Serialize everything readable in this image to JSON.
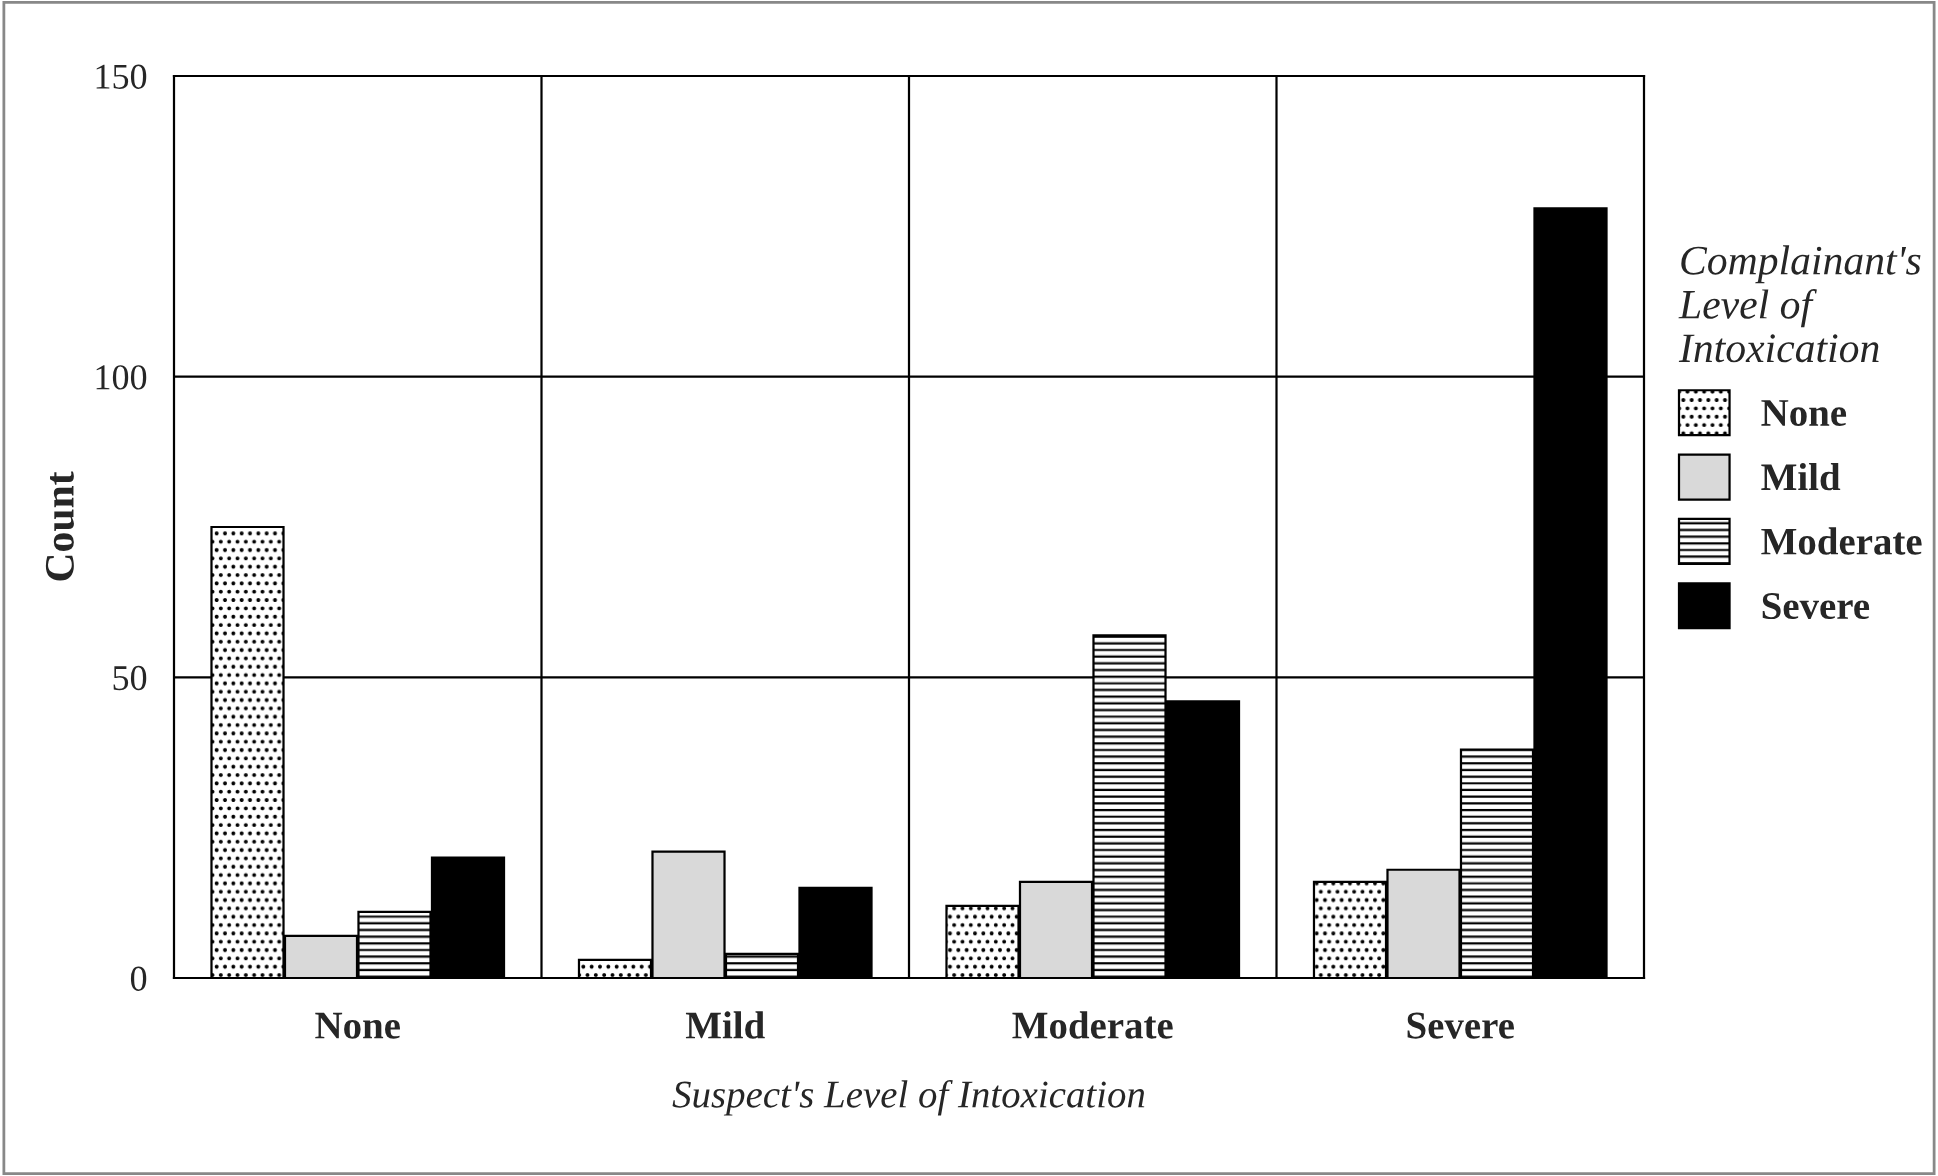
{
  "chart_data": {
    "type": "bar",
    "xlabel": "Suspect's Level of Intoxication",
    "ylabel": "Count",
    "legend_title": "Complainant's\nLevel of\nIntoxication",
    "categories": [
      "None",
      "Mild",
      "Moderate",
      "Severe"
    ],
    "series": [
      {
        "name": "None",
        "color": "#000000",
        "values": [
          75,
          3,
          12,
          16
        ]
      },
      {
        "name": "Mild",
        "color": "#d9d9d9",
        "values": [
          7,
          21,
          16,
          18
        ]
      },
      {
        "name": "Moderate",
        "color": "#000000",
        "values": [
          11,
          4,
          57,
          38
        ]
      },
      {
        "name": "Severe",
        "color": "#000000",
        "values": [
          20,
          15,
          46,
          128
        ]
      }
    ],
    "ylim": [
      0,
      150
    ],
    "yticks": [
      0,
      50,
      100,
      150
    ],
    "grid": true,
    "legend": "right"
  }
}
